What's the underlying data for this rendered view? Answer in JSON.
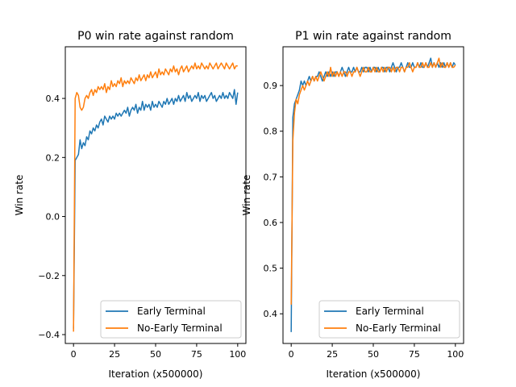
{
  "chart_data": [
    {
      "type": "line",
      "title": "P0 win rate against random",
      "xlabel": "Iteration (x500000)",
      "ylabel": "Win rate",
      "xlim": [
        -5,
        105
      ],
      "ylim": [
        -0.43,
        0.575
      ],
      "xticks": [
        0,
        25,
        50,
        75,
        100
      ],
      "xtick_labels": [
        "0",
        "25",
        "50",
        "75",
        "100"
      ],
      "yticks": [
        -0.4,
        -0.2,
        0.0,
        0.2,
        0.4
      ],
      "ytick_labels": [
        "−0.4",
        "−0.2",
        "0.0",
        "0.2",
        "0.4"
      ],
      "grid": false,
      "legend": "lower-right",
      "series": [
        {
          "name": "Early Terminal",
          "color": "#1f77b4",
          "x": [
            0,
            1,
            2,
            3,
            4,
            5,
            6,
            7,
            8,
            9,
            10,
            11,
            12,
            13,
            14,
            15,
            16,
            17,
            18,
            19,
            20,
            21,
            22,
            23,
            24,
            25,
            26,
            27,
            28,
            29,
            30,
            31,
            32,
            33,
            34,
            35,
            36,
            37,
            38,
            39,
            40,
            41,
            42,
            43,
            44,
            45,
            46,
            47,
            48,
            49,
            50,
            51,
            52,
            53,
            54,
            55,
            56,
            57,
            58,
            59,
            60,
            61,
            62,
            63,
            64,
            65,
            66,
            67,
            68,
            69,
            70,
            71,
            72,
            73,
            74,
            75,
            76,
            77,
            78,
            79,
            80,
            81,
            82,
            83,
            84,
            85,
            86,
            87,
            88,
            89,
            90,
            91,
            92,
            93,
            94,
            95,
            96,
            97,
            98,
            99,
            100
          ],
          "y": [
            -0.38,
            0.19,
            0.2,
            0.21,
            0.26,
            0.23,
            0.25,
            0.24,
            0.27,
            0.26,
            0.29,
            0.28,
            0.3,
            0.29,
            0.31,
            0.3,
            0.32,
            0.33,
            0.31,
            0.34,
            0.33,
            0.32,
            0.34,
            0.33,
            0.34,
            0.33,
            0.35,
            0.34,
            0.35,
            0.34,
            0.35,
            0.36,
            0.35,
            0.37,
            0.34,
            0.36,
            0.37,
            0.36,
            0.38,
            0.35,
            0.37,
            0.36,
            0.39,
            0.36,
            0.38,
            0.37,
            0.38,
            0.36,
            0.39,
            0.37,
            0.38,
            0.37,
            0.39,
            0.38,
            0.37,
            0.39,
            0.38,
            0.4,
            0.38,
            0.39,
            0.4,
            0.38,
            0.4,
            0.39,
            0.41,
            0.39,
            0.4,
            0.41,
            0.39,
            0.42,
            0.4,
            0.41,
            0.39,
            0.4,
            0.41,
            0.4,
            0.42,
            0.39,
            0.41,
            0.4,
            0.41,
            0.39,
            0.4,
            0.41,
            0.42,
            0.4,
            0.41,
            0.39,
            0.4,
            0.41,
            0.4,
            0.42,
            0.4,
            0.41,
            0.4,
            0.42,
            0.41,
            0.4,
            0.43,
            0.38,
            0.42
          ]
        },
        {
          "name": "No-Early Terminal",
          "color": "#ff7f0e",
          "x": [
            0,
            1,
            2,
            3,
            4,
            5,
            6,
            7,
            8,
            9,
            10,
            11,
            12,
            13,
            14,
            15,
            16,
            17,
            18,
            19,
            20,
            21,
            22,
            23,
            24,
            25,
            26,
            27,
            28,
            29,
            30,
            31,
            32,
            33,
            34,
            35,
            36,
            37,
            38,
            39,
            40,
            41,
            42,
            43,
            44,
            45,
            46,
            47,
            48,
            49,
            50,
            51,
            52,
            53,
            54,
            55,
            56,
            57,
            58,
            59,
            60,
            61,
            62,
            63,
            64,
            65,
            66,
            67,
            68,
            69,
            70,
            71,
            72,
            73,
            74,
            75,
            76,
            77,
            78,
            79,
            80,
            81,
            82,
            83,
            84,
            85,
            86,
            87,
            88,
            89,
            90,
            91,
            92,
            93,
            94,
            95,
            96,
            97,
            98,
            99,
            100
          ],
          "y": [
            -0.39,
            0.4,
            0.42,
            0.41,
            0.37,
            0.36,
            0.37,
            0.4,
            0.41,
            0.4,
            0.42,
            0.43,
            0.41,
            0.43,
            0.42,
            0.44,
            0.43,
            0.44,
            0.43,
            0.45,
            0.42,
            0.44,
            0.43,
            0.46,
            0.44,
            0.45,
            0.44,
            0.46,
            0.45,
            0.47,
            0.44,
            0.46,
            0.45,
            0.46,
            0.45,
            0.47,
            0.46,
            0.45,
            0.47,
            0.46,
            0.48,
            0.46,
            0.47,
            0.48,
            0.46,
            0.48,
            0.47,
            0.49,
            0.47,
            0.48,
            0.49,
            0.47,
            0.5,
            0.48,
            0.49,
            0.48,
            0.5,
            0.49,
            0.48,
            0.5,
            0.49,
            0.51,
            0.49,
            0.5,
            0.48,
            0.5,
            0.51,
            0.49,
            0.5,
            0.51,
            0.49,
            0.5,
            0.51,
            0.5,
            0.52,
            0.5,
            0.51,
            0.5,
            0.52,
            0.51,
            0.5,
            0.51,
            0.5,
            0.52,
            0.51,
            0.5,
            0.51,
            0.52,
            0.5,
            0.51,
            0.52,
            0.51,
            0.5,
            0.52,
            0.51,
            0.5,
            0.51,
            0.52,
            0.5,
            0.51,
            0.51
          ]
        }
      ]
    },
    {
      "type": "line",
      "title": "P1 win rate against random",
      "xlabel": "Iteration (x500000)",
      "ylabel": "Win rate",
      "xlim": [
        -5,
        105
      ],
      "ylim": [
        0.335,
        0.985
      ],
      "xticks": [
        0,
        25,
        50,
        75,
        100
      ],
      "xtick_labels": [
        "0",
        "25",
        "50",
        "75",
        "100"
      ],
      "yticks": [
        0.4,
        0.5,
        0.6,
        0.7,
        0.8,
        0.9
      ],
      "ytick_labels": [
        "0.4",
        "0.5",
        "0.6",
        "0.7",
        "0.8",
        "0.9"
      ],
      "grid": false,
      "legend": "lower-right",
      "series": [
        {
          "name": "Early Terminal",
          "color": "#1f77b4",
          "x": [
            0,
            1,
            2,
            3,
            4,
            5,
            6,
            7,
            8,
            9,
            10,
            11,
            12,
            13,
            14,
            15,
            16,
            17,
            18,
            19,
            20,
            21,
            22,
            23,
            24,
            25,
            26,
            27,
            28,
            29,
            30,
            31,
            32,
            33,
            34,
            35,
            36,
            37,
            38,
            39,
            40,
            41,
            42,
            43,
            44,
            45,
            46,
            47,
            48,
            49,
            50,
            51,
            52,
            53,
            54,
            55,
            56,
            57,
            58,
            59,
            60,
            61,
            62,
            63,
            64,
            65,
            66,
            67,
            68,
            69,
            70,
            71,
            72,
            73,
            74,
            75,
            76,
            77,
            78,
            79,
            80,
            81,
            82,
            83,
            84,
            85,
            86,
            87,
            88,
            89,
            90,
            91,
            92,
            93,
            94,
            95,
            96,
            97,
            98,
            99,
            100
          ],
          "y": [
            0.36,
            0.83,
            0.86,
            0.87,
            0.88,
            0.89,
            0.91,
            0.9,
            0.91,
            0.9,
            0.91,
            0.92,
            0.91,
            0.92,
            0.91,
            0.92,
            0.92,
            0.93,
            0.92,
            0.91,
            0.92,
            0.93,
            0.92,
            0.93,
            0.92,
            0.93,
            0.92,
            0.93,
            0.93,
            0.92,
            0.93,
            0.94,
            0.93,
            0.92,
            0.93,
            0.94,
            0.93,
            0.93,
            0.94,
            0.93,
            0.94,
            0.93,
            0.93,
            0.94,
            0.93,
            0.94,
            0.94,
            0.93,
            0.94,
            0.93,
            0.94,
            0.94,
            0.93,
            0.94,
            0.93,
            0.94,
            0.94,
            0.93,
            0.94,
            0.94,
            0.93,
            0.94,
            0.95,
            0.94,
            0.93,
            0.94,
            0.94,
            0.95,
            0.94,
            0.93,
            0.94,
            0.95,
            0.94,
            0.94,
            0.95,
            0.94,
            0.94,
            0.95,
            0.94,
            0.95,
            0.94,
            0.94,
            0.95,
            0.94,
            0.95,
            0.96,
            0.94,
            0.95,
            0.94,
            0.95,
            0.94,
            0.95,
            0.94,
            0.95,
            0.94,
            0.95,
            0.94,
            0.95,
            0.94,
            0.95,
            0.945
          ]
        },
        {
          "name": "No-Early Terminal",
          "color": "#ff7f0e",
          "x": [
            0,
            1,
            2,
            3,
            4,
            5,
            6,
            7,
            8,
            9,
            10,
            11,
            12,
            13,
            14,
            15,
            16,
            17,
            18,
            19,
            20,
            21,
            22,
            23,
            24,
            25,
            26,
            27,
            28,
            29,
            30,
            31,
            32,
            33,
            34,
            35,
            36,
            37,
            38,
            39,
            40,
            41,
            42,
            43,
            44,
            45,
            46,
            47,
            48,
            49,
            50,
            51,
            52,
            53,
            54,
            55,
            56,
            57,
            58,
            59,
            60,
            61,
            62,
            63,
            64,
            65,
            66,
            67,
            68,
            69,
            70,
            71,
            72,
            73,
            74,
            75,
            76,
            77,
            78,
            79,
            80,
            81,
            82,
            83,
            84,
            85,
            86,
            87,
            88,
            89,
            90,
            91,
            92,
            93,
            94,
            95,
            96,
            97,
            98,
            99,
            100
          ],
          "y": [
            0.42,
            0.78,
            0.84,
            0.87,
            0.86,
            0.88,
            0.89,
            0.9,
            0.89,
            0.9,
            0.91,
            0.9,
            0.91,
            0.92,
            0.91,
            0.92,
            0.91,
            0.92,
            0.93,
            0.92,
            0.91,
            0.92,
            0.93,
            0.92,
            0.94,
            0.92,
            0.93,
            0.92,
            0.93,
            0.92,
            0.93,
            0.92,
            0.93,
            0.93,
            0.92,
            0.93,
            0.93,
            0.92,
            0.93,
            0.93,
            0.94,
            0.93,
            0.92,
            0.93,
            0.94,
            0.93,
            0.93,
            0.94,
            0.93,
            0.93,
            0.94,
            0.93,
            0.94,
            0.93,
            0.93,
            0.94,
            0.93,
            0.94,
            0.93,
            0.94,
            0.94,
            0.93,
            0.94,
            0.93,
            0.94,
            0.94,
            0.93,
            0.94,
            0.94,
            0.93,
            0.94,
            0.94,
            0.95,
            0.94,
            0.93,
            0.94,
            0.94,
            0.95,
            0.94,
            0.94,
            0.95,
            0.94,
            0.95,
            0.94,
            0.94,
            0.95,
            0.94,
            0.95,
            0.94,
            0.95,
            0.96,
            0.94,
            0.95,
            0.94,
            0.94,
            0.95,
            0.94,
            0.95,
            0.94,
            0.94,
            0.945
          ]
        }
      ]
    }
  ]
}
